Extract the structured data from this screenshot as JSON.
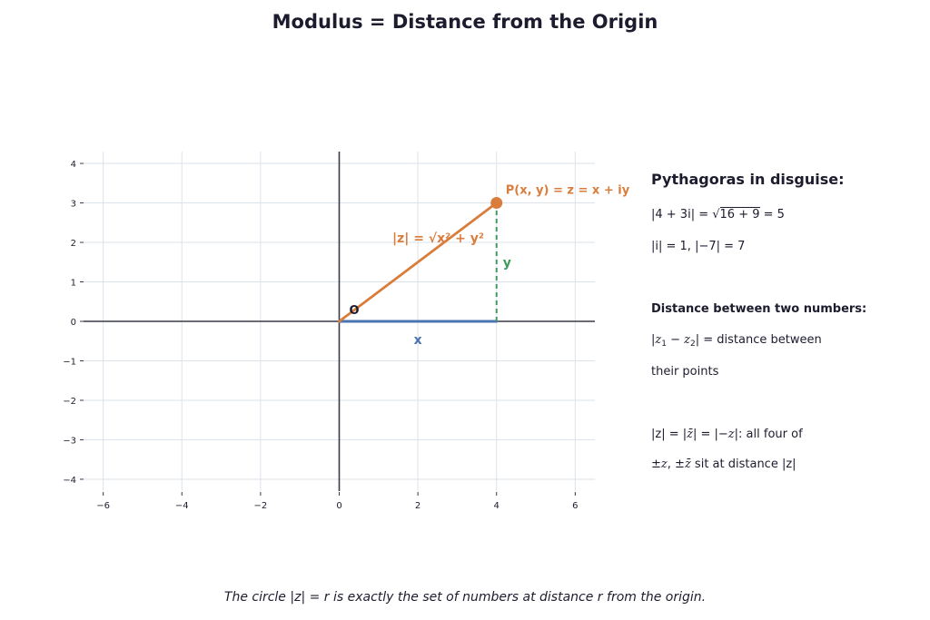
{
  "title": "Modulus = Distance from the Origin",
  "colors": {
    "modulus": "#d97d3c",
    "x_leg": "#4a74b0",
    "y_leg": "#3f9a5f",
    "axis": "#3a3a4a",
    "grid": "#dde3ea",
    "text": "#1c1c2e"
  },
  "chart_data": {
    "type": "scatter",
    "title": "",
    "xlabel": "",
    "ylabel": "",
    "xlim": [
      -6.5,
      6.5
    ],
    "ylim": [
      -4.3,
      4.3
    ],
    "xticks": [
      -6,
      -4,
      -2,
      0,
      2,
      4,
      6
    ],
    "yticks": [
      -4,
      -3,
      -2,
      -1,
      0,
      1,
      2,
      3,
      4
    ],
    "xtick_labels": [
      "−6",
      "−4",
      "−2",
      "0",
      "2",
      "4",
      "6"
    ],
    "ytick_labels": [
      "−4",
      "−3",
      "−2",
      "−1",
      "0",
      "1",
      "2",
      "3",
      "4"
    ],
    "grid": true,
    "point": {
      "x": 4,
      "y": 3,
      "label": "P(x, y) = z = x + iy"
    },
    "origin": {
      "x": 0,
      "y": 0,
      "label": "O"
    },
    "segments": [
      {
        "name": "modulus",
        "from": [
          0,
          0
        ],
        "to": [
          4,
          3
        ],
        "style": "solid",
        "label": "|z| = √x² + y²"
      },
      {
        "name": "x-leg",
        "from": [
          0,
          0
        ],
        "to": [
          4,
          0
        ],
        "style": "solid",
        "label": "x"
      },
      {
        "name": "y-leg",
        "from": [
          4,
          0
        ],
        "to": [
          4,
          3
        ],
        "style": "dashed",
        "label": "y"
      }
    ]
  },
  "panel": {
    "heading": "Pythagoras in disguise:",
    "example1_pre": "|4 + 3i| = ",
    "example1_sqrt": "16 + 9",
    "example1_post": " = 5",
    "example2": "|i| = 1,  |−7| = 7",
    "subheading": "Distance between two numbers:",
    "distance_line1_post": " = distance between",
    "distance_line2": "their points",
    "conj_line1_post": ": all four of",
    "conj_line2_post": " sit at distance |z|"
  },
  "caption": "The circle |z| = r is exactly the set of numbers at distance r from the origin."
}
